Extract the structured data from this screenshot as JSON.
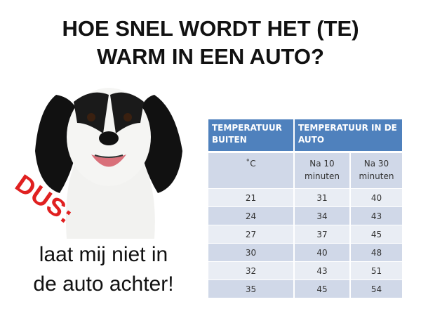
{
  "title": {
    "line1": "HOE SNEL WORDT HET (TE)",
    "line2": "WARM IN EEN AUTO?"
  },
  "dus": "DUS:",
  "message": {
    "line1": "laat mij niet in",
    "line2": "de auto achter!"
  },
  "colors": {
    "header": "#4f81bd",
    "row_light": "#e9edf4",
    "row_dark": "#d0d8e8",
    "dus": "#e02020"
  },
  "table": {
    "header": {
      "col1": "TEMPERATUUR BUITEN",
      "col2": "TEMPERATUUR IN DE AUTO"
    },
    "subheader": {
      "col1": "˚C",
      "col2": "Na 10 minuten",
      "col3": "Na 30 minuten"
    },
    "rows": [
      [
        "21",
        "31",
        "40"
      ],
      [
        "24",
        "34",
        "43"
      ],
      [
        "27",
        "37",
        "45"
      ],
      [
        "30",
        "40",
        "48"
      ],
      [
        "32",
        "43",
        "51"
      ],
      [
        "35",
        "45",
        "54"
      ]
    ]
  }
}
